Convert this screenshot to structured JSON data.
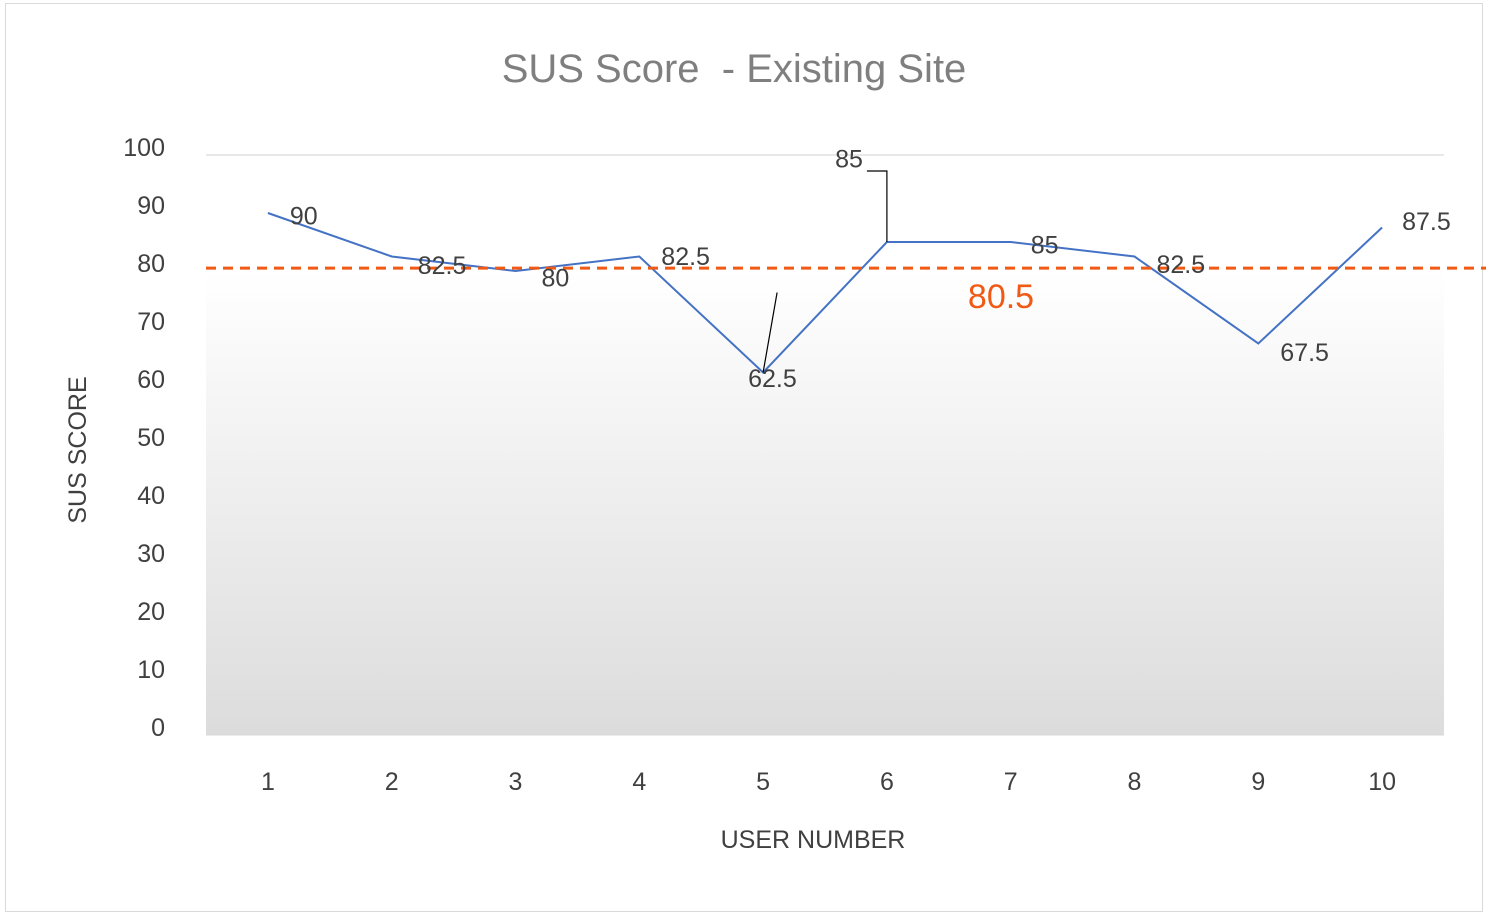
{
  "chart_data": {
    "type": "line",
    "title": "SUS Score  - Existing Site",
    "xlabel": "USER NUMBER",
    "ylabel": "SUS SCORE",
    "categories": [
      "1",
      "2",
      "3",
      "4",
      "5",
      "6",
      "7",
      "8",
      "9",
      "10"
    ],
    "series": [
      {
        "values": [
          90,
          82.5,
          80,
          82.5,
          62.5,
          85,
          85,
          82.5,
          67.5,
          87.5
        ],
        "color": "#4472c4"
      }
    ],
    "data_labels": [
      "90",
      "82.5",
      "80",
      "82.5",
      "62.5",
      "85",
      "85",
      "82.5",
      "67.5",
      "87.5"
    ],
    "reference_line": {
      "value": 80.5,
      "label": "80.5",
      "style": "dashed",
      "color": "#f05a14"
    },
    "ylim": [
      0,
      100
    ],
    "yticks": [
      "0",
      "10",
      "20",
      "30",
      "40",
      "50",
      "60",
      "70",
      "80",
      "90",
      "100"
    ],
    "grid": "top line only",
    "legend": "none",
    "plot_background": "gradient white to light gray"
  }
}
